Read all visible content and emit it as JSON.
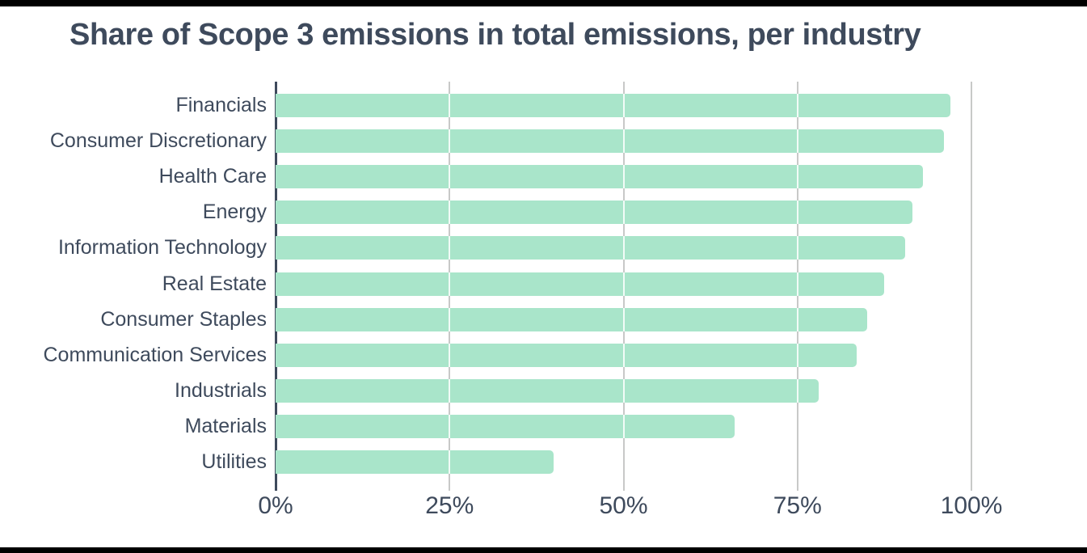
{
  "colors": {
    "bar": "#A9E5CA",
    "text": "#3E4A5C",
    "gridline": "#C8C9C8",
    "gridline_over_bar": "#FFFFFF",
    "background": "#FFFFFF",
    "letterbox": "#000000"
  },
  "chart_data": {
    "type": "bar",
    "orientation": "horizontal",
    "title": "Share of Scope 3 emissions in total emissions, per industry",
    "categories": [
      "Financials",
      "Consumer Discretionary",
      "Health Care",
      "Energy",
      "Information Technology",
      "Real Estate",
      "Consumer Staples",
      "Communication Services",
      "Industrials",
      "Materials",
      "Utilities"
    ],
    "values": [
      97,
      96,
      93,
      91.5,
      90.5,
      87.5,
      85,
      83.5,
      78,
      66,
      40
    ],
    "unit": "%",
    "xlabel": "",
    "ylabel": "",
    "xlim": [
      0,
      100
    ],
    "x_ticks": [
      {
        "value": 0,
        "label": "0%"
      },
      {
        "value": 25,
        "label": "25%"
      },
      {
        "value": 50,
        "label": "50%"
      },
      {
        "value": 75,
        "label": "75%"
      },
      {
        "value": 100,
        "label": "100%"
      }
    ],
    "gridlines": "vertical at 25/50/75/100, light gray, white where crossing bars",
    "legend": "none",
    "value_labels": "none"
  }
}
